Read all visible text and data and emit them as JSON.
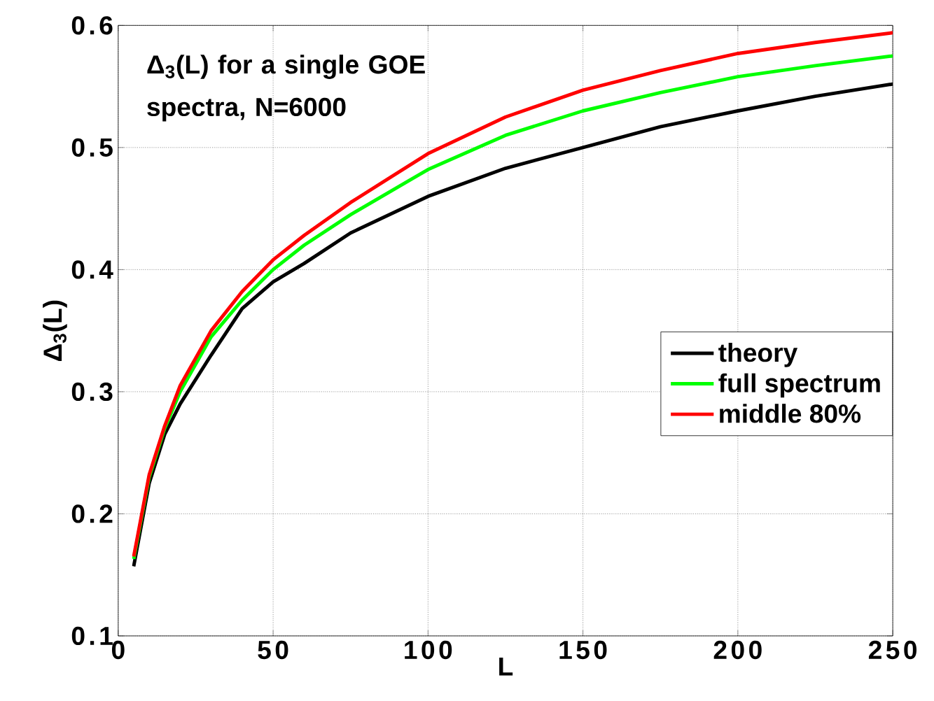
{
  "chart_data": {
    "type": "line",
    "xlabel": "L",
    "ylabel": "Δ$_{3}$(L)",
    "annotations": [
      "Δ$_{3}$(L) for a single GOE spectra, N=6000"
    ],
    "x": [
      5,
      10,
      15,
      20,
      30,
      40,
      50,
      60,
      75,
      100,
      125,
      150,
      175,
      200,
      225,
      250
    ],
    "series": [
      {
        "name": "theory",
        "color": "#000000",
        "values": [
          0.157,
          0.225,
          0.265,
          0.29,
          0.33,
          0.368,
          0.39,
          0.405,
          0.43,
          0.46,
          0.483,
          0.5,
          0.517,
          0.53,
          0.542,
          0.552
        ]
      },
      {
        "name": "full spectrum",
        "color": "#00ff00",
        "values": [
          0.163,
          0.23,
          0.27,
          0.3,
          0.345,
          0.375,
          0.4,
          0.42,
          0.445,
          0.482,
          0.51,
          0.53,
          0.545,
          0.558,
          0.567,
          0.575
        ]
      },
      {
        "name": "middle 80%",
        "color": "#ff0000",
        "values": [
          0.165,
          0.232,
          0.272,
          0.305,
          0.35,
          0.382,
          0.408,
          0.428,
          0.455,
          0.495,
          0.525,
          0.547,
          0.563,
          0.577,
          0.586,
          0.594
        ]
      }
    ],
    "xlim": [
      0,
      250
    ],
    "ylim": [
      0.1,
      0.6
    ],
    "xticks": [
      0,
      50,
      100,
      150,
      200,
      250
    ],
    "yticks": [
      0.1,
      0.2,
      0.3,
      0.4,
      0.5,
      0.6
    ],
    "grid": true,
    "legend": "right",
    "marker": "none",
    "line_style": "solid"
  }
}
